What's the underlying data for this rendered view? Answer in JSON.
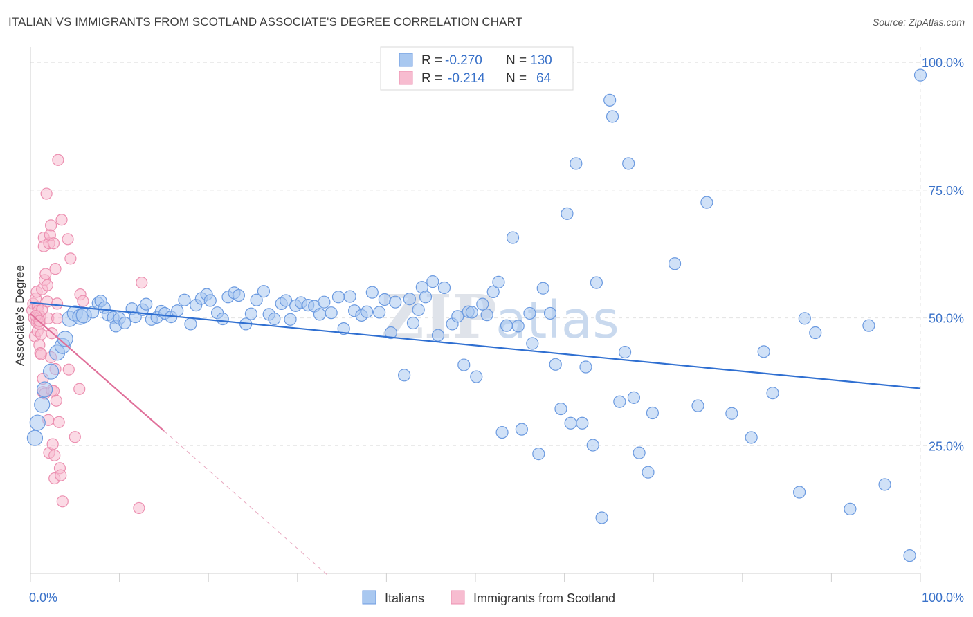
{
  "title": "ITALIAN VS IMMIGRANTS FROM SCOTLAND ASSOCIATE'S DEGREE CORRELATION CHART",
  "source": "Source: ZipAtlas.com",
  "watermark": {
    "zip": "ZIP",
    "atlas": "atlas"
  },
  "colors": {
    "blue_fill": "#a9c8f0",
    "blue_stroke": "#6b9ae0",
    "blue_line": "#2f6fd1",
    "pink_fill": "#f7bcd0",
    "pink_stroke": "#ec8fb0",
    "pink_line": "#e0709a",
    "tick_text": "#3a72c9",
    "grid": "#e3e3e3"
  },
  "legend": {
    "rows": [
      {
        "r_label": "R =",
        "r_value": "-0.270",
        "n_label": "N =",
        "n_value": "130"
      },
      {
        "r_label": "R =",
        "r_value": "-0.214",
        "n_label": "N =",
        "n_value": "64"
      }
    ]
  },
  "bottom_legend": [
    "Italians",
    "Immigrants from Scotland"
  ],
  "chart_data": {
    "type": "scatter",
    "title": "ITALIAN VS IMMIGRANTS FROM SCOTLAND ASSOCIATE'S DEGREE CORRELATION CHART",
    "xlabel": "",
    "ylabel": "Associate's Degree",
    "xlim": [
      0,
      100
    ],
    "ylim": [
      0,
      103
    ],
    "x_tick_labels": [
      "0.0%",
      "100.0%"
    ],
    "y_ticks": [
      25,
      50,
      75,
      100
    ],
    "y_tick_labels": [
      "25.0%",
      "50.0%",
      "75.0%",
      "100.0%"
    ],
    "grid": true,
    "legend_position": "top-center",
    "series": [
      {
        "name": "Italians",
        "r": -0.27,
        "n": 130,
        "trend": {
          "x": [
            0,
            100
          ],
          "y": [
            53.0,
            36.2
          ],
          "style": "solid"
        },
        "points": [
          [
            0.5,
            26.5,
            12
          ],
          [
            0.8,
            29.5,
            12
          ],
          [
            1.3,
            33.0,
            12
          ],
          [
            1.6,
            36.0,
            12
          ],
          [
            2.3,
            39.5,
            12
          ],
          [
            3.0,
            43.2,
            12
          ],
          [
            3.6,
            44.5,
            12
          ],
          [
            3.9,
            45.9,
            12
          ],
          [
            4.4,
            49.8,
            12
          ],
          [
            5.0,
            50.9,
            12
          ],
          [
            5.6,
            50.2,
            12
          ],
          [
            6.0,
            50.5,
            12
          ],
          [
            7.0,
            51.1,
            10
          ],
          [
            7.6,
            52.9,
            10
          ],
          [
            7.9,
            53.3,
            10
          ],
          [
            8.3,
            52.0,
            10
          ],
          [
            8.7,
            50.6,
            10
          ],
          [
            9.3,
            50.1,
            10
          ],
          [
            9.6,
            48.4,
            10
          ],
          [
            10.0,
            49.9,
            10
          ],
          [
            10.6,
            49.0,
            10
          ],
          [
            11.4,
            51.8,
            10
          ],
          [
            11.8,
            50.2,
            10
          ],
          [
            12.6,
            51.6,
            10
          ],
          [
            13.0,
            52.7,
            10
          ],
          [
            13.6,
            49.7,
            10
          ],
          [
            14.2,
            50.1,
            10
          ],
          [
            14.7,
            51.3,
            10
          ],
          [
            15.1,
            50.9,
            10
          ],
          [
            15.8,
            50.2,
            10
          ],
          [
            16.5,
            51.4,
            10
          ],
          [
            17.3,
            53.5,
            10
          ],
          [
            18.0,
            48.8,
            10
          ],
          [
            18.6,
            52.5,
            10
          ],
          [
            19.2,
            53.8,
            10
          ],
          [
            19.8,
            54.6,
            10
          ],
          [
            20.2,
            53.4,
            10
          ],
          [
            21.0,
            51.0,
            10
          ],
          [
            21.6,
            49.8,
            10
          ],
          [
            22.2,
            54.1,
            10
          ],
          [
            22.9,
            54.9,
            10
          ],
          [
            23.4,
            54.4,
            10
          ],
          [
            24.2,
            48.8,
            10
          ],
          [
            24.8,
            50.8,
            10
          ],
          [
            25.4,
            53.5,
            10
          ],
          [
            26.2,
            55.2,
            10
          ],
          [
            26.8,
            50.7,
            10
          ],
          [
            27.4,
            49.8,
            10
          ],
          [
            28.2,
            52.8,
            10
          ],
          [
            28.7,
            53.4,
            10
          ],
          [
            29.2,
            49.7,
            10
          ],
          [
            29.8,
            52.4,
            10
          ],
          [
            30.4,
            53.0,
            10
          ],
          [
            31.2,
            52.5,
            10
          ],
          [
            31.9,
            52.3,
            10
          ],
          [
            32.5,
            50.7,
            10
          ],
          [
            33.0,
            53.1,
            10
          ],
          [
            33.8,
            51.0,
            10
          ],
          [
            34.6,
            54.1,
            10
          ],
          [
            35.2,
            47.9,
            10
          ],
          [
            35.9,
            54.2,
            10
          ],
          [
            36.4,
            51.4,
            10
          ],
          [
            37.2,
            50.5,
            10
          ],
          [
            37.8,
            51.2,
            10
          ],
          [
            38.4,
            55.0,
            10
          ],
          [
            39.2,
            51.1,
            10
          ],
          [
            39.8,
            53.6,
            10
          ],
          [
            40.5,
            47.1,
            10
          ],
          [
            41.0,
            53.1,
            10
          ],
          [
            42.0,
            38.8,
            10
          ],
          [
            42.6,
            53.7,
            10
          ],
          [
            43.0,
            49.0,
            10
          ],
          [
            43.6,
            51.6,
            10
          ],
          [
            44.0,
            56.0,
            10
          ],
          [
            44.4,
            54.1,
            10
          ],
          [
            45.2,
            57.1,
            10
          ],
          [
            45.8,
            46.6,
            10
          ],
          [
            46.5,
            55.9,
            10
          ],
          [
            47.4,
            48.8,
            10
          ],
          [
            48.0,
            50.3,
            10
          ],
          [
            48.7,
            40.8,
            10
          ],
          [
            49.2,
            51.2,
            10
          ],
          [
            49.6,
            51.1,
            10
          ],
          [
            50.1,
            38.5,
            10
          ],
          [
            50.8,
            52.7,
            10
          ],
          [
            51.3,
            50.6,
            10
          ],
          [
            52.0,
            55.1,
            10
          ],
          [
            52.6,
            57.0,
            10
          ],
          [
            53.0,
            27.6,
            10
          ],
          [
            53.5,
            48.5,
            10
          ],
          [
            54.2,
            65.7,
            10
          ],
          [
            54.8,
            48.4,
            10
          ],
          [
            55.2,
            28.2,
            10
          ],
          [
            56.1,
            50.9,
            10
          ],
          [
            56.4,
            45.0,
            10
          ],
          [
            57.1,
            23.4,
            10
          ],
          [
            57.6,
            55.8,
            10
          ],
          [
            58.4,
            50.9,
            10
          ],
          [
            59.0,
            40.9,
            10
          ],
          [
            59.6,
            32.2,
            10
          ],
          [
            60.3,
            70.4,
            10
          ],
          [
            60.7,
            29.4,
            10
          ],
          [
            61.3,
            80.2,
            10
          ],
          [
            62.0,
            29.4,
            10
          ],
          [
            62.4,
            40.4,
            10
          ],
          [
            63.2,
            25.1,
            10
          ],
          [
            63.6,
            56.9,
            10
          ],
          [
            64.2,
            10.9,
            10
          ],
          [
            65.1,
            92.6,
            10
          ],
          [
            65.4,
            89.4,
            10
          ],
          [
            66.2,
            33.6,
            10
          ],
          [
            66.8,
            43.3,
            10
          ],
          [
            67.2,
            80.2,
            10
          ],
          [
            67.8,
            34.4,
            10
          ],
          [
            68.4,
            23.6,
            10
          ],
          [
            69.4,
            19.8,
            10
          ],
          [
            69.9,
            31.4,
            10
          ],
          [
            72.4,
            60.6,
            10
          ],
          [
            75.0,
            32.8,
            10
          ],
          [
            76.0,
            72.6,
            10
          ],
          [
            78.8,
            31.3,
            10
          ],
          [
            81.0,
            26.6,
            10
          ],
          [
            82.4,
            43.4,
            10
          ],
          [
            83.4,
            35.3,
            10
          ],
          [
            86.4,
            15.9,
            10
          ],
          [
            87.0,
            49.9,
            10
          ],
          [
            88.2,
            47.1,
            10
          ],
          [
            92.1,
            12.6,
            10
          ],
          [
            94.2,
            48.5,
            10
          ],
          [
            96.0,
            17.4,
            10
          ],
          [
            98.8,
            3.5,
            10
          ],
          [
            100.0,
            97.5,
            10
          ]
        ]
      },
      {
        "name": "Immigrants from Scotland",
        "r": -0.214,
        "n": 64,
        "trend": {
          "x": [
            0,
            15
          ],
          "y": [
            50.8,
            27.9
          ],
          "style": "solid",
          "dashed_extension": {
            "x": [
              15,
              33.5
            ],
            "y": [
              27.9,
              -0.5
            ]
          }
        },
        "points": [
          [
            0.2,
            51.5
          ],
          [
            0.3,
            52.8
          ],
          [
            0.4,
            50.0
          ],
          [
            0.5,
            46.4
          ],
          [
            0.6,
            53.8
          ],
          [
            0.7,
            55.1
          ],
          [
            0.7,
            49.1
          ],
          [
            0.8,
            47.4
          ],
          [
            0.8,
            52.1
          ],
          [
            0.9,
            51.4
          ],
          [
            1.0,
            44.7
          ],
          [
            1.0,
            48.8
          ],
          [
            1.1,
            50.3
          ],
          [
            1.1,
            43.1
          ],
          [
            1.2,
            46.8
          ],
          [
            1.2,
            42.9
          ],
          [
            1.3,
            55.6
          ],
          [
            1.3,
            51.6
          ],
          [
            1.4,
            38.1
          ],
          [
            1.4,
            35.5
          ],
          [
            1.5,
            65.7
          ],
          [
            1.5,
            64.0
          ],
          [
            1.6,
            57.4
          ],
          [
            1.6,
            35.2
          ],
          [
            1.7,
            58.6
          ],
          [
            1.8,
            74.3
          ],
          [
            1.9,
            56.4
          ],
          [
            1.9,
            53.2
          ],
          [
            2.0,
            49.9
          ],
          [
            2.0,
            30.0
          ],
          [
            2.1,
            64.6
          ],
          [
            2.1,
            23.6
          ],
          [
            2.2,
            66.2
          ],
          [
            2.3,
            68.1
          ],
          [
            2.3,
            42.3
          ],
          [
            2.4,
            47.0
          ],
          [
            2.4,
            35.8
          ],
          [
            2.5,
            25.3
          ],
          [
            2.6,
            64.6
          ],
          [
            2.6,
            35.7
          ],
          [
            2.7,
            23.1
          ],
          [
            2.7,
            18.6
          ],
          [
            2.8,
            59.6
          ],
          [
            2.8,
            40.0
          ],
          [
            2.9,
            33.8
          ],
          [
            3.0,
            49.9
          ],
          [
            3.0,
            52.8
          ],
          [
            3.1,
            80.9
          ],
          [
            3.2,
            29.6
          ],
          [
            3.3,
            20.6
          ],
          [
            3.4,
            19.2
          ],
          [
            3.5,
            69.2
          ],
          [
            3.6,
            14.1
          ],
          [
            4.2,
            65.4
          ],
          [
            4.3,
            39.9
          ],
          [
            4.5,
            61.6
          ],
          [
            5.0,
            26.7
          ],
          [
            5.5,
            36.1
          ],
          [
            5.6,
            54.6
          ],
          [
            5.9,
            53.3
          ],
          [
            12.5,
            56.9
          ],
          [
            12.2,
            12.8
          ],
          [
            0.6,
            50.4
          ],
          [
            1.0,
            49.4
          ]
        ]
      }
    ]
  }
}
